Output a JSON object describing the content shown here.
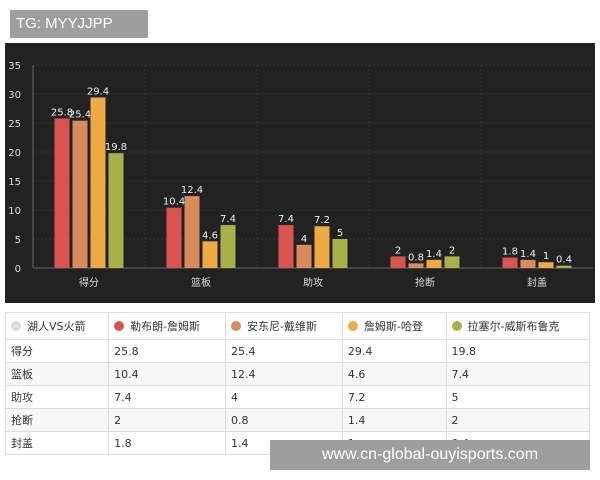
{
  "tag": "TG: MYYJJPP",
  "watermark": "www.cn-global-ouyisports.com",
  "chart_data": {
    "type": "bar",
    "categories": [
      "得分",
      "篮板",
      "助攻",
      "抢断",
      "封盖"
    ],
    "ylim": [
      0,
      35
    ],
    "yticks": [
      0,
      5,
      10,
      15,
      20,
      25,
      30,
      35
    ],
    "grid": true,
    "series": [
      {
        "name": "勒布朗-詹姆斯",
        "color": "#d9534f",
        "values": [
          25.8,
          10.4,
          7.4,
          2,
          1.8
        ]
      },
      {
        "name": "安东尼-戴维斯",
        "color": "#d98b5b",
        "values": [
          25.4,
          12.4,
          4,
          0.8,
          1.4
        ]
      },
      {
        "name": "詹姆斯-哈登",
        "color": "#eeaa44",
        "values": [
          29.4,
          4.6,
          7.2,
          1.4,
          1
        ]
      },
      {
        "name": "拉塞尔-威斯布鲁克",
        "color": "#a9b14a",
        "values": [
          19.8,
          7.4,
          5,
          2,
          0.4
        ]
      }
    ]
  },
  "table": {
    "corner": "湖人VS火箭"
  }
}
